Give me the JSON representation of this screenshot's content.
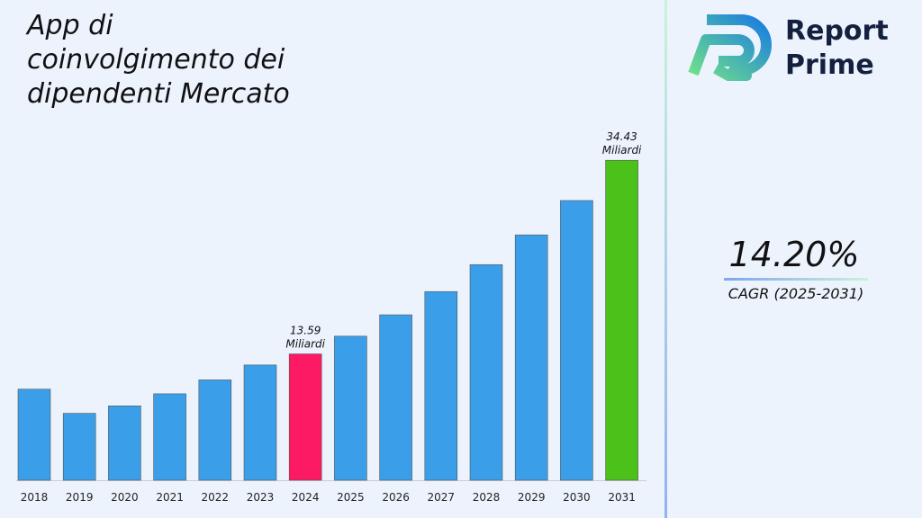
{
  "chart_data": {
    "type": "bar",
    "title": [
      "App di",
      "coinvolgimento dei",
      "dipendenti Mercato"
    ],
    "categories": [
      "2018",
      "2019",
      "2020",
      "2021",
      "2022",
      "2023",
      "2024",
      "2025",
      "2026",
      "2027",
      "2028",
      "2029",
      "2030",
      "2031"
    ],
    "values": [
      9.8,
      7.2,
      8.0,
      9.3,
      10.8,
      12.4,
      13.59,
      15.5,
      17.8,
      20.3,
      23.2,
      26.4,
      30.1,
      34.43
    ],
    "value_labels": [
      null,
      null,
      null,
      null,
      null,
      null,
      "13.59 Miliardi",
      null,
      null,
      null,
      null,
      null,
      null,
      "34.43 Miliardi"
    ],
    "colors": [
      "#3a9fe8",
      "#3a9fe8",
      "#3a9fe8",
      "#3a9fe8",
      "#3a9fe8",
      "#3a9fe8",
      "#fb1a63",
      "#3a9fe8",
      "#3a9fe8",
      "#3a9fe8",
      "#3a9fe8",
      "#3a9fe8",
      "#3a9fe8",
      "#4cc11a"
    ],
    "ylim": [
      0,
      36
    ]
  },
  "cagr": {
    "value": "14.20%",
    "label": "CAGR (2025-2031)"
  },
  "logo": {
    "line1": "Report",
    "line2": "Prime"
  }
}
